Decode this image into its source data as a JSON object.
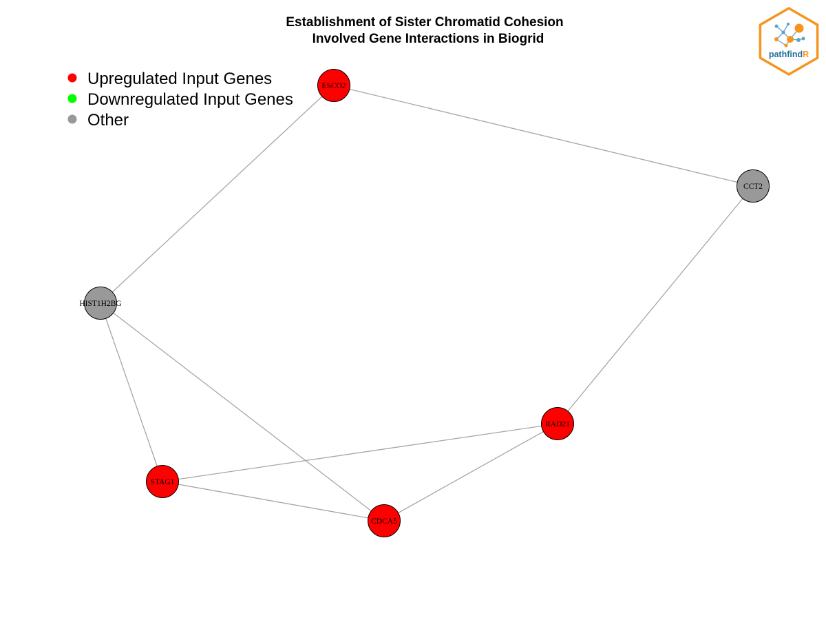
{
  "title": {
    "line1": "Establishment of Sister Chromatid Cohesion",
    "line2": "Involved Gene Interactions in Biogrid"
  },
  "legend": [
    {
      "label": "Upregulated Input Genes",
      "color": "#ff0000"
    },
    {
      "label": "Downregulated Input Genes",
      "color": "#00ff00"
    },
    {
      "label": "Other",
      "color": "#999999"
    }
  ],
  "logo": {
    "text_main": "pathfind",
    "text_accent": "R",
    "text_main_color": "#1f6f9a",
    "accent_color": "#f7941d"
  },
  "colors": {
    "edge": "#a6a6a6",
    "upregulated": "#ff0000",
    "other": "#999999"
  },
  "nodes": [
    {
      "id": "ESCO2",
      "label": "ESCO2",
      "category": "upregulated"
    },
    {
      "id": "CCT2",
      "label": "CCT2",
      "category": "other"
    },
    {
      "id": "HIST1H2BG",
      "label": "HIST1H2BG",
      "category": "other"
    },
    {
      "id": "RAD21",
      "label": "RAD21",
      "category": "upregulated"
    },
    {
      "id": "STAG1",
      "label": "STAG1",
      "category": "upregulated"
    },
    {
      "id": "CDCA5",
      "label": "CDCA5",
      "category": "upregulated"
    }
  ],
  "edges": [
    {
      "source": "ESCO2",
      "target": "CCT2"
    },
    {
      "source": "ESCO2",
      "target": "HIST1H2BG"
    },
    {
      "source": "CCT2",
      "target": "RAD21"
    },
    {
      "source": "HIST1H2BG",
      "target": "STAG1"
    },
    {
      "source": "HIST1H2BG",
      "target": "CDCA5"
    },
    {
      "source": "STAG1",
      "target": "RAD21"
    },
    {
      "source": "STAG1",
      "target": "CDCA5"
    },
    {
      "source": "CDCA5",
      "target": "RAD21"
    }
  ]
}
